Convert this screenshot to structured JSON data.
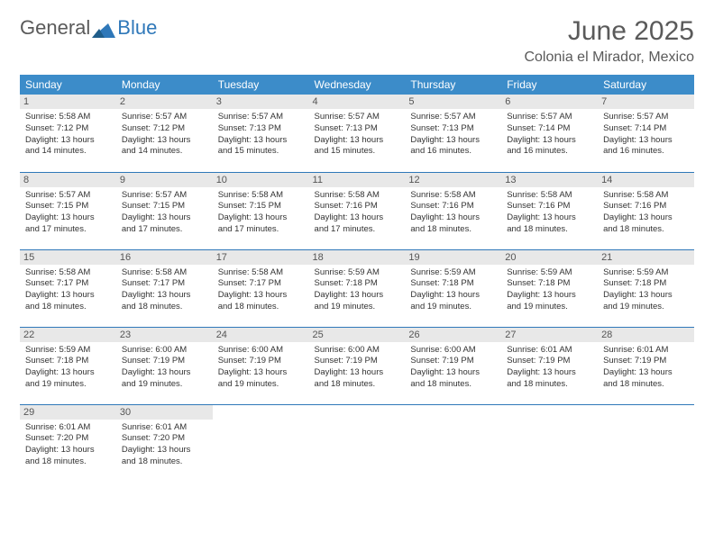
{
  "brand": {
    "part1": "General",
    "part2": "Blue"
  },
  "title": "June 2025",
  "location": "Colonia el Mirador, Mexico",
  "colors": {
    "header_bg": "#3c8cc9",
    "rule": "#2f78b9",
    "daynum_bg": "#e8e8e8",
    "text": "#333333",
    "title_text": "#5a5a5a"
  },
  "dayHeaders": [
    "Sunday",
    "Monday",
    "Tuesday",
    "Wednesday",
    "Thursday",
    "Friday",
    "Saturday"
  ],
  "weeks": [
    [
      {
        "n": "1",
        "sr": "Sunrise: 5:58 AM",
        "ss": "Sunset: 7:12 PM",
        "dl": "Daylight: 13 hours and 14 minutes."
      },
      {
        "n": "2",
        "sr": "Sunrise: 5:57 AM",
        "ss": "Sunset: 7:12 PM",
        "dl": "Daylight: 13 hours and 14 minutes."
      },
      {
        "n": "3",
        "sr": "Sunrise: 5:57 AM",
        "ss": "Sunset: 7:13 PM",
        "dl": "Daylight: 13 hours and 15 minutes."
      },
      {
        "n": "4",
        "sr": "Sunrise: 5:57 AM",
        "ss": "Sunset: 7:13 PM",
        "dl": "Daylight: 13 hours and 15 minutes."
      },
      {
        "n": "5",
        "sr": "Sunrise: 5:57 AM",
        "ss": "Sunset: 7:13 PM",
        "dl": "Daylight: 13 hours and 16 minutes."
      },
      {
        "n": "6",
        "sr": "Sunrise: 5:57 AM",
        "ss": "Sunset: 7:14 PM",
        "dl": "Daylight: 13 hours and 16 minutes."
      },
      {
        "n": "7",
        "sr": "Sunrise: 5:57 AM",
        "ss": "Sunset: 7:14 PM",
        "dl": "Daylight: 13 hours and 16 minutes."
      }
    ],
    [
      {
        "n": "8",
        "sr": "Sunrise: 5:57 AM",
        "ss": "Sunset: 7:15 PM",
        "dl": "Daylight: 13 hours and 17 minutes."
      },
      {
        "n": "9",
        "sr": "Sunrise: 5:57 AM",
        "ss": "Sunset: 7:15 PM",
        "dl": "Daylight: 13 hours and 17 minutes."
      },
      {
        "n": "10",
        "sr": "Sunrise: 5:58 AM",
        "ss": "Sunset: 7:15 PM",
        "dl": "Daylight: 13 hours and 17 minutes."
      },
      {
        "n": "11",
        "sr": "Sunrise: 5:58 AM",
        "ss": "Sunset: 7:16 PM",
        "dl": "Daylight: 13 hours and 17 minutes."
      },
      {
        "n": "12",
        "sr": "Sunrise: 5:58 AM",
        "ss": "Sunset: 7:16 PM",
        "dl": "Daylight: 13 hours and 18 minutes."
      },
      {
        "n": "13",
        "sr": "Sunrise: 5:58 AM",
        "ss": "Sunset: 7:16 PM",
        "dl": "Daylight: 13 hours and 18 minutes."
      },
      {
        "n": "14",
        "sr": "Sunrise: 5:58 AM",
        "ss": "Sunset: 7:16 PM",
        "dl": "Daylight: 13 hours and 18 minutes."
      }
    ],
    [
      {
        "n": "15",
        "sr": "Sunrise: 5:58 AM",
        "ss": "Sunset: 7:17 PM",
        "dl": "Daylight: 13 hours and 18 minutes."
      },
      {
        "n": "16",
        "sr": "Sunrise: 5:58 AM",
        "ss": "Sunset: 7:17 PM",
        "dl": "Daylight: 13 hours and 18 minutes."
      },
      {
        "n": "17",
        "sr": "Sunrise: 5:58 AM",
        "ss": "Sunset: 7:17 PM",
        "dl": "Daylight: 13 hours and 18 minutes."
      },
      {
        "n": "18",
        "sr": "Sunrise: 5:59 AM",
        "ss": "Sunset: 7:18 PM",
        "dl": "Daylight: 13 hours and 19 minutes."
      },
      {
        "n": "19",
        "sr": "Sunrise: 5:59 AM",
        "ss": "Sunset: 7:18 PM",
        "dl": "Daylight: 13 hours and 19 minutes."
      },
      {
        "n": "20",
        "sr": "Sunrise: 5:59 AM",
        "ss": "Sunset: 7:18 PM",
        "dl": "Daylight: 13 hours and 19 minutes."
      },
      {
        "n": "21",
        "sr": "Sunrise: 5:59 AM",
        "ss": "Sunset: 7:18 PM",
        "dl": "Daylight: 13 hours and 19 minutes."
      }
    ],
    [
      {
        "n": "22",
        "sr": "Sunrise: 5:59 AM",
        "ss": "Sunset: 7:18 PM",
        "dl": "Daylight: 13 hours and 19 minutes."
      },
      {
        "n": "23",
        "sr": "Sunrise: 6:00 AM",
        "ss": "Sunset: 7:19 PM",
        "dl": "Daylight: 13 hours and 19 minutes."
      },
      {
        "n": "24",
        "sr": "Sunrise: 6:00 AM",
        "ss": "Sunset: 7:19 PM",
        "dl": "Daylight: 13 hours and 19 minutes."
      },
      {
        "n": "25",
        "sr": "Sunrise: 6:00 AM",
        "ss": "Sunset: 7:19 PM",
        "dl": "Daylight: 13 hours and 18 minutes."
      },
      {
        "n": "26",
        "sr": "Sunrise: 6:00 AM",
        "ss": "Sunset: 7:19 PM",
        "dl": "Daylight: 13 hours and 18 minutes."
      },
      {
        "n": "27",
        "sr": "Sunrise: 6:01 AM",
        "ss": "Sunset: 7:19 PM",
        "dl": "Daylight: 13 hours and 18 minutes."
      },
      {
        "n": "28",
        "sr": "Sunrise: 6:01 AM",
        "ss": "Sunset: 7:19 PM",
        "dl": "Daylight: 13 hours and 18 minutes."
      }
    ],
    [
      {
        "n": "29",
        "sr": "Sunrise: 6:01 AM",
        "ss": "Sunset: 7:20 PM",
        "dl": "Daylight: 13 hours and 18 minutes."
      },
      {
        "n": "30",
        "sr": "Sunrise: 6:01 AM",
        "ss": "Sunset: 7:20 PM",
        "dl": "Daylight: 13 hours and 18 minutes."
      },
      null,
      null,
      null,
      null,
      null
    ]
  ]
}
